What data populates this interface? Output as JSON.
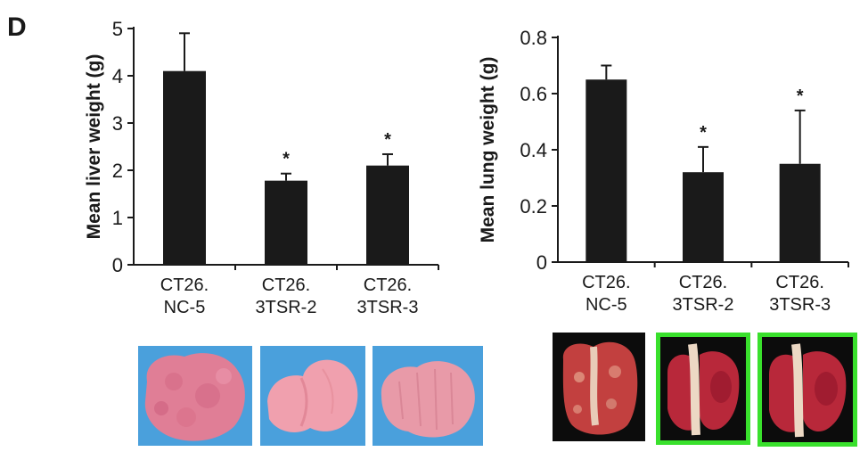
{
  "figure": {
    "panel_letter": "D"
  },
  "chart_data": [
    {
      "type": "bar",
      "categories": [
        [
          "CT26.",
          "NC-5"
        ],
        [
          "CT26.",
          "3TSR-2"
        ],
        [
          "CT26.",
          "3TSR-3"
        ]
      ],
      "values": [
        4.1,
        1.78,
        2.1
      ],
      "errors": [
        0.8,
        0.15,
        0.24
      ],
      "significance": [
        "",
        "*",
        "*"
      ],
      "ylabel": "Mean liver weight (g)",
      "ylim": [
        0,
        5
      ],
      "yticks": [
        0,
        1,
        2,
        3,
        4,
        5
      ],
      "ytick_labels": [
        "0",
        "1",
        "2",
        "3",
        "4",
        "5"
      ],
      "grid": false
    },
    {
      "type": "bar",
      "categories": [
        [
          "CT26.",
          "NC-5"
        ],
        [
          "CT26.",
          "3TSR-2"
        ],
        [
          "CT26.",
          "3TSR-3"
        ]
      ],
      "values": [
        0.65,
        0.32,
        0.35
      ],
      "errors": [
        0.05,
        0.09,
        0.19
      ],
      "significance": [
        "",
        "*",
        "*"
      ],
      "ylabel": "Mean lung weight (g)",
      "ylim": [
        0,
        0.8
      ],
      "yticks": [
        0,
        0.2,
        0.4,
        0.6,
        0.8
      ],
      "ytick_labels": [
        "0",
        "0.2",
        "0.4",
        "0.6",
        "0.8"
      ],
      "grid": false
    }
  ],
  "photos": {
    "liver": [
      {
        "name": "liver-photo-nc5",
        "background": "#4aa0dc",
        "tissue": "#e07e96"
      },
      {
        "name": "liver-photo-3tsr2",
        "background": "#4aa0dc",
        "tissue": "#f0a0ae"
      },
      {
        "name": "liver-photo-3tsr3",
        "background": "#4aa0dc",
        "tissue": "#e89aa8"
      }
    ],
    "lung": [
      {
        "name": "lung-photo-nc5",
        "background": "#0c0c0c",
        "tissue": "#c2403f",
        "highlighted": false
      },
      {
        "name": "lung-photo-3tsr2",
        "background": "#0c0c0c",
        "tissue": "#b8283a",
        "highlighted": true
      },
      {
        "name": "lung-photo-3tsr3",
        "background": "#0c0c0c",
        "tissue": "#b8283a",
        "highlighted": true
      }
    ],
    "highlight_color": "#39e02c"
  }
}
